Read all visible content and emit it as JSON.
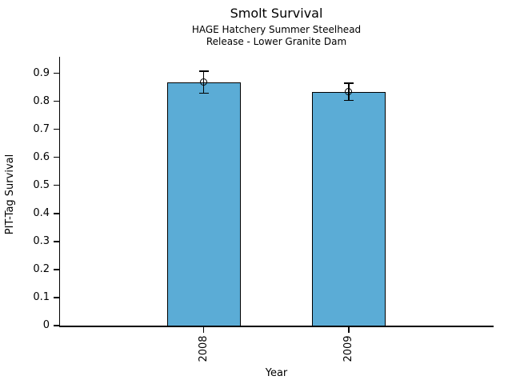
{
  "header": {
    "title": "Smolt Survival",
    "subtitle1": "HAGE Hatchery Summer Steelhead",
    "subtitle2": "Release - Lower Granite Dam"
  },
  "chart_data": {
    "type": "bar",
    "title": "Smolt Survival",
    "subtitle": [
      "HAGE Hatchery Summer Steelhead",
      "Release - Lower Granite Dam"
    ],
    "categories": [
      "2008",
      "2009"
    ],
    "values": [
      0.868,
      0.834
    ],
    "errors": [
      0.039,
      0.031
    ],
    "xlabel": "Year",
    "ylabel": "PIT-Tag Survival",
    "ylim": [
      0,
      0.95
    ],
    "yticks": [
      0,
      0.1,
      0.2,
      0.3,
      0.4,
      0.5,
      0.6,
      0.7,
      0.8,
      0.9
    ],
    "ytick_labels": [
      "0",
      "0.1",
      "0.2",
      "0.3",
      "0.4",
      "0.5",
      "0.6",
      "0.7",
      "0.8",
      "0.9"
    ],
    "xtick_label_rotation": 90,
    "grid": false,
    "legend": null,
    "bar_color": "#5BACD6",
    "bar_edge_color": "#000000",
    "error_bar_color": "#000000",
    "error_marker": "open-circle",
    "background_color": "#FFFFFF"
  }
}
